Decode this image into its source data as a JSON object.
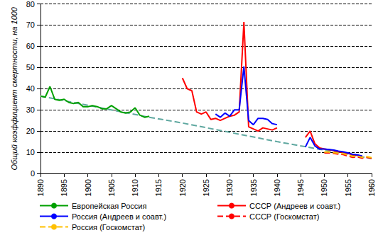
{
  "chart_data": {
    "type": "line",
    "ylabel": "Общий коэффициент смертности, на 1000",
    "xlim": [
      1890,
      1960
    ],
    "xticks": [
      1890,
      1895,
      1900,
      1905,
      1910,
      1915,
      1920,
      1925,
      1930,
      1935,
      1940,
      1945,
      1950,
      1955,
      1960
    ],
    "ylim": [
      0,
      80
    ],
    "yticks": [
      0,
      10,
      20,
      30,
      40,
      50,
      60,
      70,
      80
    ],
    "grid": true,
    "legend": "bottom",
    "series": [
      {
        "color": "#5fa8a0",
        "line_style": "dashed",
        "x": [
          1890,
          1913,
          1920,
          1940,
          1960
        ],
        "values": [
          36.5,
          26.5,
          23.8,
          15,
          7
        ]
      },
      {
        "name": "Европейская Россия",
        "color": "#00a000",
        "line_style": "solid",
        "x": [
          1890,
          1891,
          1892,
          1893,
          1894,
          1895,
          1896,
          1897,
          1898,
          1899,
          1900,
          1901,
          1902,
          1903,
          1904,
          1905,
          1906,
          1907,
          1908,
          1909,
          1910,
          1911,
          1912,
          1913
        ],
        "values": [
          36.5,
          36,
          41,
          35,
          34.5,
          35,
          33.5,
          33,
          33.5,
          31.5,
          31.5,
          32,
          31.5,
          30.5,
          30.5,
          32,
          30.5,
          29,
          28.5,
          29,
          31,
          27.5,
          26.5,
          27
        ]
      },
      {
        "name": "СССР (Андреев и соавт.)",
        "color": "#ff0000",
        "line_style": "solid",
        "x": [
          1920,
          1921,
          1922,
          1923,
          1924,
          1925,
          1926,
          1927,
          1928,
          1929,
          1930,
          1931,
          1932,
          1933,
          1934,
          1935,
          1936,
          1937,
          1938,
          1939,
          1940,
          1941,
          1942,
          1943,
          1944,
          1945,
          1946,
          1947,
          1948,
          1949,
          1950,
          1951,
          1952,
          1953,
          1954,
          1955,
          1956,
          1957,
          1958
        ],
        "values": [
          45,
          40,
          39,
          29,
          28,
          29,
          25.5,
          26,
          25,
          26,
          27,
          27.5,
          29,
          71.5,
          22,
          21,
          20,
          21.5,
          21,
          20.5,
          21.5,
          null,
          null,
          null,
          null,
          null,
          17,
          20,
          14,
          12,
          11.5,
          11.2,
          10.8,
          10.2,
          10,
          9.4,
          8.8,
          8.5,
          8
        ]
      },
      {
        "name": "Россия (Андреев и соавт.)",
        "color": "#0000ff",
        "line_style": "solid",
        "x": [
          1927,
          1928,
          1929,
          1930,
          1931,
          1932,
          1933,
          1934,
          1935,
          1936,
          1937,
          1938,
          1939,
          1940,
          1941,
          1942,
          1943,
          1944,
          1945,
          1946,
          1947,
          1948,
          1949,
          1950,
          1951,
          1952,
          1953,
          1954,
          1955,
          1956,
          1957,
          1958
        ],
        "values": [
          28,
          26.5,
          28.5,
          27,
          30,
          30,
          50.5,
          25,
          23,
          26,
          26,
          25.5,
          23.5,
          23,
          null,
          null,
          null,
          null,
          null,
          12.5,
          17,
          13,
          11.5,
          11.5,
          11.3,
          11,
          10.5,
          10.2,
          9.7,
          9,
          8.8,
          8.2
        ]
      },
      {
        "name": "СССР (Госкомстат)",
        "color": "#ff0000",
        "line_style": "dashed",
        "x": [
          1950,
          1951,
          1952,
          1953,
          1954,
          1955,
          1956,
          1957,
          1958,
          1959,
          1960
        ],
        "values": [
          9.7,
          9.7,
          9.4,
          9.1,
          8.9,
          8.2,
          7.6,
          7.8,
          7.2,
          7.6,
          7.1
        ]
      },
      {
        "name": "Россия (Госкомстат)",
        "color": "#ffc000",
        "line_style": "dashed",
        "x": [
          1950,
          1951,
          1952,
          1953,
          1954,
          1955,
          1956,
          1957,
          1958,
          1959,
          1960
        ],
        "values": [
          10.1,
          10.1,
          9.8,
          9.5,
          9.3,
          8.7,
          8,
          8.2,
          7.6,
          7.9,
          7.4
        ]
      }
    ]
  }
}
